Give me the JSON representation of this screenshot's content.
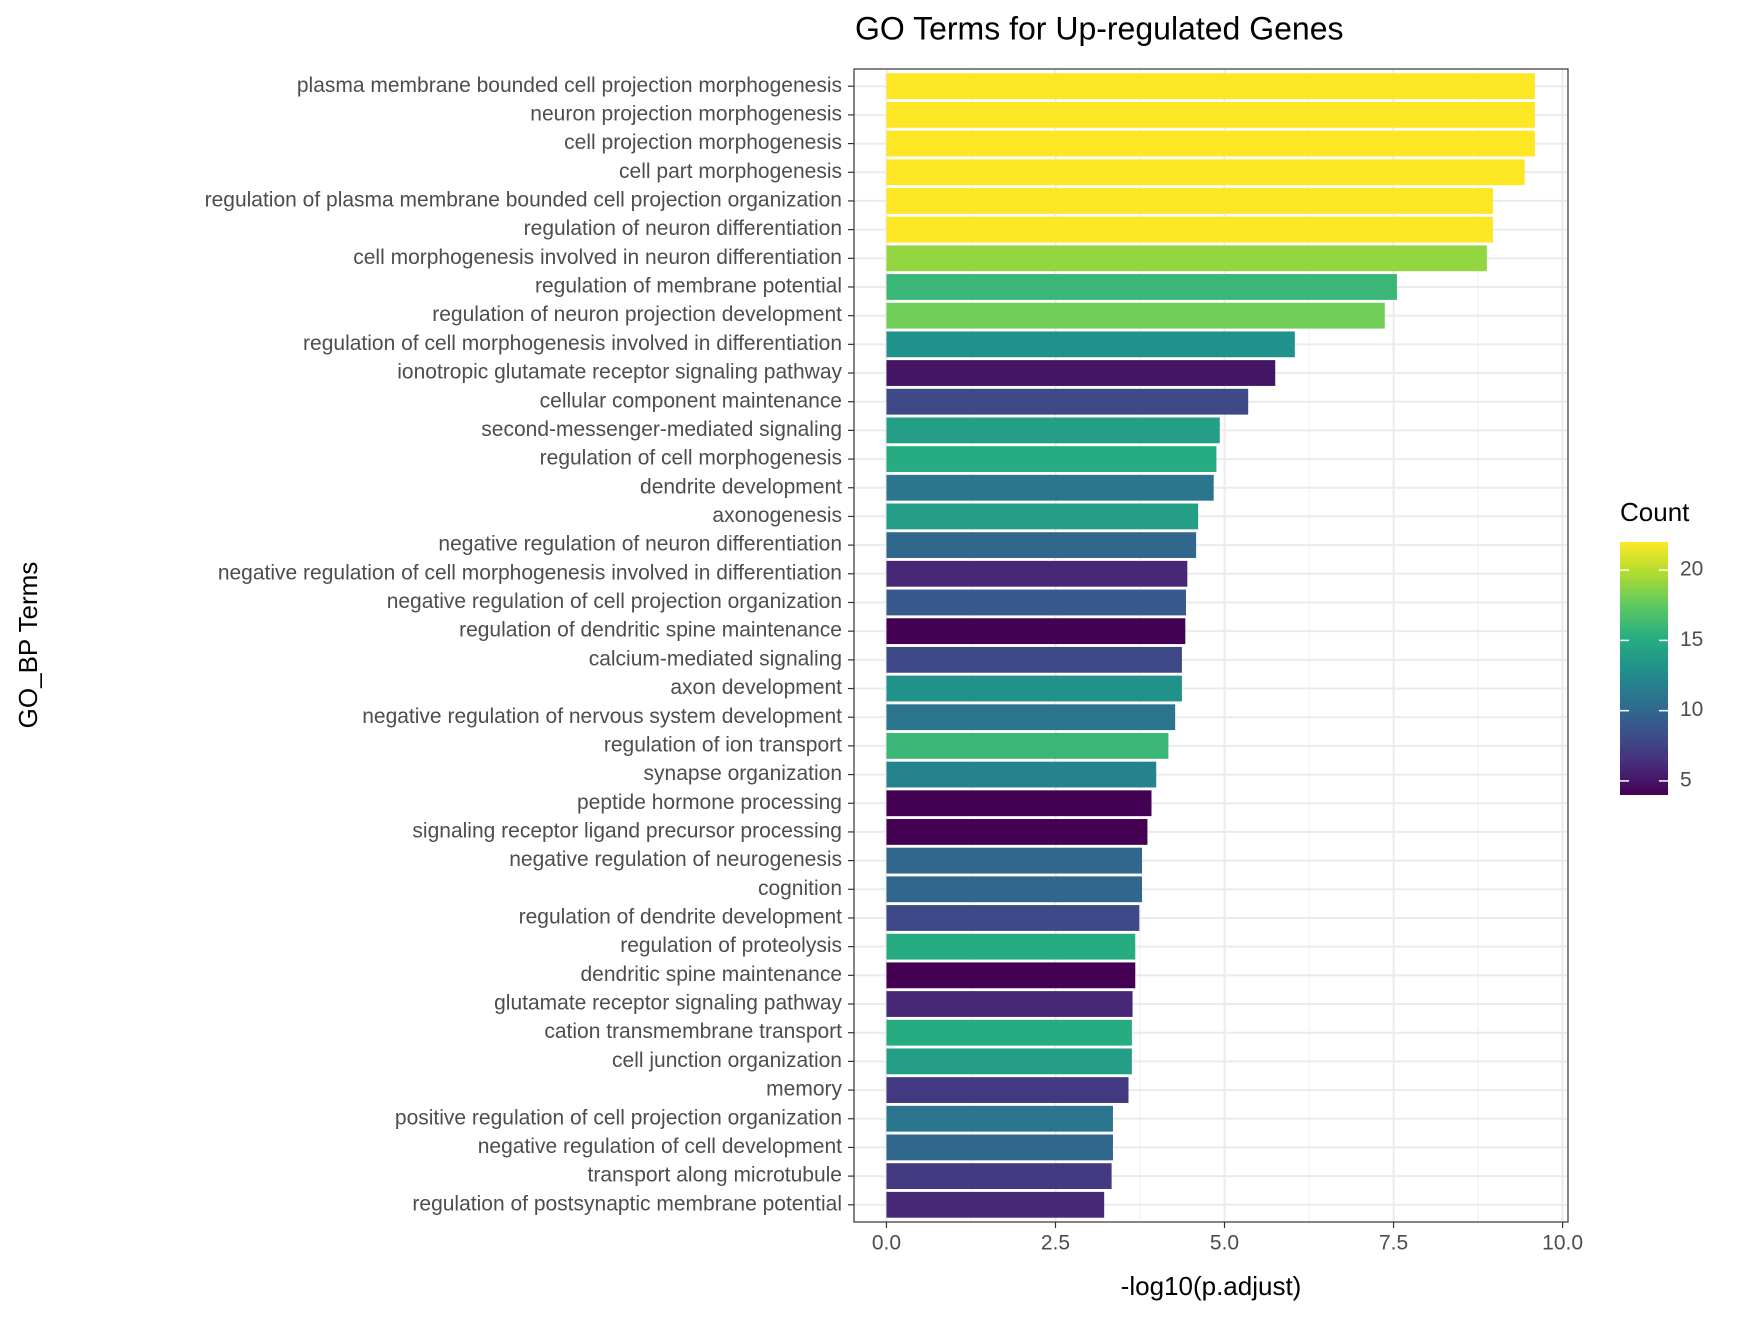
{
  "chart_data": {
    "type": "bar",
    "orientation": "horizontal",
    "title": "GO Terms for Up-regulated Genes",
    "x_label": "-log10(p.adjust)",
    "y_label": "GO_BP Terms",
    "categories": [
      "plasma membrane bounded cell projection morphogenesis",
      "neuron projection morphogenesis",
      "cell projection morphogenesis",
      "cell part morphogenesis",
      "regulation of plasma membrane bounded cell projection organization",
      "regulation of neuron differentiation",
      "cell morphogenesis involved in neuron differentiation",
      "regulation of membrane potential",
      "regulation of neuron projection development",
      "regulation of cell morphogenesis involved in differentiation",
      "ionotropic glutamate receptor signaling pathway",
      "cellular component maintenance",
      "second-messenger-mediated signaling",
      "regulation of cell morphogenesis",
      "dendrite development",
      "axonogenesis",
      "negative regulation of neuron differentiation",
      "negative regulation of cell morphogenesis involved in differentiation",
      "negative regulation of cell projection organization",
      "regulation of dendritic spine maintenance",
      "calcium-mediated signaling",
      "axon development",
      "negative regulation of nervous system development",
      "regulation of ion transport",
      "synapse organization",
      "peptide hormone processing",
      "signaling receptor ligand precursor processing",
      "negative regulation of neurogenesis",
      "cognition",
      "regulation of dendrite development",
      "regulation of proteolysis",
      "dendritic spine maintenance",
      "glutamate receptor signaling pathway",
      "cation transmembrane transport",
      "cell junction organization",
      "memory",
      "positive regulation of cell projection organization",
      "negative regulation of cell development",
      "transport along microtubule",
      "regulation of postsynaptic membrane potential"
    ],
    "values": [
      9.59,
      9.59,
      9.59,
      9.44,
      8.97,
      8.97,
      8.88,
      7.55,
      7.37,
      6.04,
      5.75,
      5.35,
      4.93,
      4.88,
      4.84,
      4.61,
      4.58,
      4.45,
      4.43,
      4.42,
      4.37,
      4.37,
      4.27,
      4.17,
      3.99,
      3.92,
      3.86,
      3.78,
      3.78,
      3.74,
      3.68,
      3.68,
      3.64,
      3.63,
      3.63,
      3.58,
      3.35,
      3.35,
      3.33,
      3.22
    ],
    "color_values": [
      22,
      22,
      22,
      22,
      22,
      22,
      19,
      16,
      18,
      13,
      5,
      8,
      14,
      15,
      11,
      14,
      10,
      6,
      9,
      4,
      8,
      13,
      11,
      16,
      12,
      4,
      4,
      10,
      10,
      8,
      15,
      4,
      6,
      15,
      14,
      7,
      11,
      10,
      7,
      6
    ],
    "color_title": "Count",
    "colormap": [
      "#440154",
      "#472d7b",
      "#3b528b",
      "#2c728e",
      "#21918c",
      "#28ae80",
      "#5ec962",
      "#addc30",
      "#fde725"
    ],
    "clim": [
      4,
      22
    ],
    "cticks": [
      5,
      10,
      15,
      20
    ],
    "xlim": [
      -0.48,
      10.08
    ],
    "xticks": [
      {
        "value": 0,
        "label": "0.0"
      },
      2.5,
      {
        "value": 5,
        "label": "5.0"
      },
      7.5,
      {
        "value": 10,
        "label": "10.0"
      }
    ],
    "grid": true
  }
}
